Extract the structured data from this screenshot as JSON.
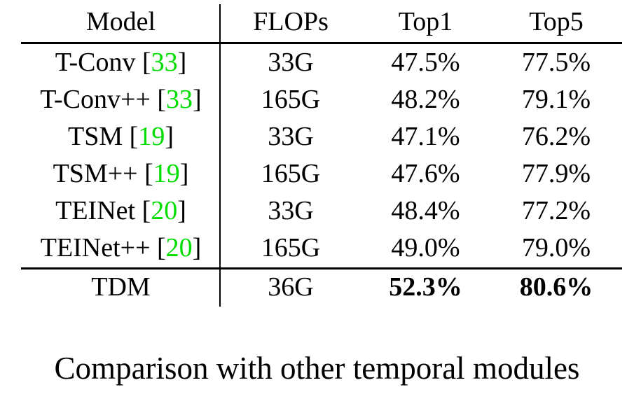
{
  "table": {
    "headers": [
      "Model",
      "FLOPs",
      "Top1",
      "Top5"
    ],
    "rows": [
      {
        "model": "T-Conv",
        "ref": "33",
        "flops": "33G",
        "top1": "47.5%",
        "top5": "77.5%"
      },
      {
        "model": "T-Conv++",
        "ref": "33",
        "flops": "165G",
        "top1": "48.2%",
        "top5": "79.1%"
      },
      {
        "model": "TSM",
        "ref": "19",
        "flops": "33G",
        "top1": "47.1%",
        "top5": "76.2%"
      },
      {
        "model": "TSM++",
        "ref": "19",
        "flops": "165G",
        "top1": "47.6%",
        "top5": "77.9%"
      },
      {
        "model": "TEINet",
        "ref": "20",
        "flops": "33G",
        "top1": "48.4%",
        "top5": "77.2%"
      },
      {
        "model": "TEINet++",
        "ref": "20",
        "flops": "165G",
        "top1": "49.0%",
        "top5": "79.0%"
      }
    ],
    "final_row": {
      "model": "TDM",
      "flops": "36G",
      "top1": "52.3%",
      "top5": "80.6%"
    },
    "ref_color": "#00dd00"
  },
  "caption": "Comparison with other temporal modules"
}
